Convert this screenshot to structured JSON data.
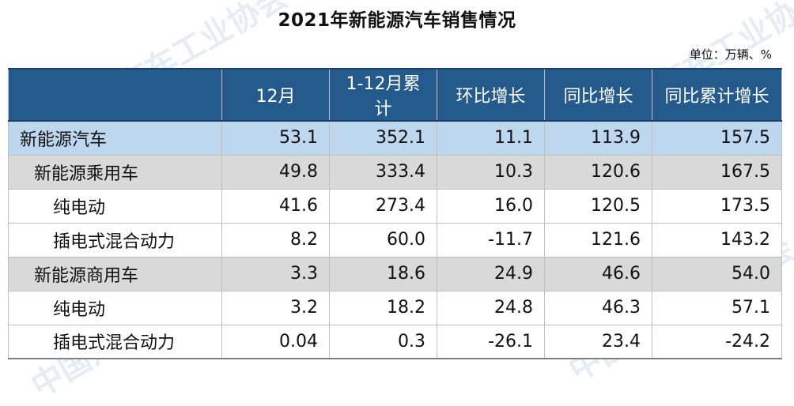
{
  "title": "2021年新能源汽车销售情况",
  "unit": "单位：万辆、%",
  "headers": [
    "",
    "12月",
    "1-12月累计",
    "环比增长",
    "同比增长",
    "同比累计增长"
  ],
  "rows": [
    {
      "label": "新能源汽车",
      "level": 0,
      "values": [
        "53.1",
        "352.1",
        "11.1",
        "113.9",
        "157.5"
      ]
    },
    {
      "label": "新能源乘用车",
      "level": 1,
      "values": [
        "49.8",
        "333.4",
        "10.3",
        "120.6",
        "167.5"
      ]
    },
    {
      "label": "纯电动",
      "level": 2,
      "values": [
        "41.6",
        "273.4",
        "16.0",
        "120.5",
        "173.5"
      ]
    },
    {
      "label": "插电式混合动力",
      "level": 2,
      "values": [
        "8.2",
        "60.0",
        "-11.7",
        "121.6",
        "143.2"
      ]
    },
    {
      "label": "新能源商用车",
      "level": 1,
      "values": [
        "3.3",
        "18.6",
        "24.9",
        "46.6",
        "54.0"
      ]
    },
    {
      "label": "纯电动",
      "level": 2,
      "values": [
        "3.2",
        "18.2",
        "24.8",
        "46.3",
        "57.1"
      ]
    },
    {
      "label": "插电式混合动力",
      "level": 2,
      "values": [
        "0.04",
        "0.3",
        "-26.1",
        "23.4",
        "-24.2"
      ]
    }
  ],
  "colors": {
    "header_bg": "#245a8c",
    "level0_bg": "#bdd7ee",
    "level1_bg": "#d9d9d9",
    "level2_bg": "#ffffff"
  }
}
